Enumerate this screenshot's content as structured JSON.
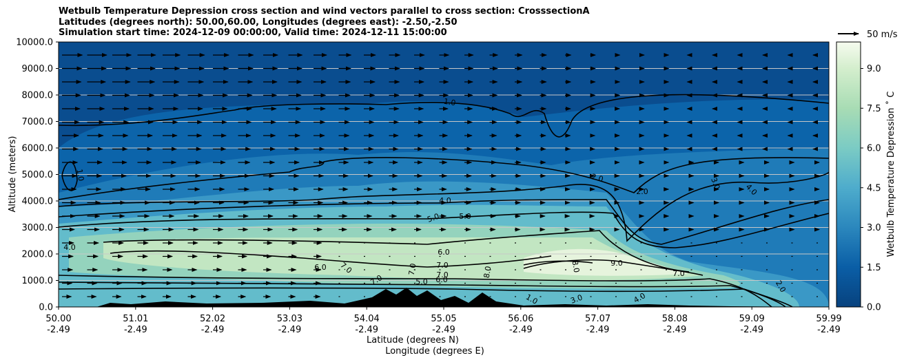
{
  "chart_data": {
    "type": "contour",
    "title": [
      "Wetbulb Temperature Depression cross section and wind vectors parallel to cross section: CrosssectionA",
      "Latitudes (degrees north): 50.00,60.00, Longitudes (degrees east): -2.50,-2.50",
      "Simulation start time: 2024-12-09 00:00:00, Valid time: 2024-12-11 15:00:00"
    ],
    "ylabel": "Altitude (meters)",
    "xlabel_lat": "Latitude (degrees N)",
    "xlabel_lon": "Longitude (degrees E)",
    "ylim": [
      0,
      10000
    ],
    "yticks": [
      "0.0",
      "1000.0",
      "2000.0",
      "3000.0",
      "4000.0",
      "5000.0",
      "6000.0",
      "7000.0",
      "8000.0",
      "9000.0",
      "10000.0"
    ],
    "xticks_lat": [
      "50.00",
      "51.01",
      "52.02",
      "53.03",
      "54.04",
      "55.05",
      "56.06",
      "57.07",
      "58.08",
      "59.09",
      "59.99"
    ],
    "xticks_lon": [
      "-2.49",
      "-2.49",
      "-2.49",
      "-2.49",
      "-2.49",
      "-2.49",
      "-2.49",
      "-2.49",
      "-2.49",
      "-2.49",
      "-2.49"
    ],
    "colorbar": {
      "label": "Wetbulb Temperature Depression $^\\circ$C",
      "label_text": "Wetbulb Temperature Depression ˚ C",
      "ticks": [
        "0.0",
        "1.5",
        "3.0",
        "4.5",
        "6.0",
        "7.5",
        "9.0"
      ],
      "range": [
        0,
        10
      ]
    },
    "wind_key": "50 m/s",
    "contour_labels": [
      "1.0",
      "1.0",
      "2.0",
      "2.0",
      "3.0",
      "4.0",
      "4.0",
      "4.0",
      "5.0",
      "5.0",
      "6.0",
      "6.0",
      "7.0",
      "7.0",
      "7.0",
      "7.0",
      "8.0",
      "8.0",
      "9.0",
      "7.0",
      "1.0",
      "2.0",
      "3.0",
      "4.0",
      "5.0",
      "6.0",
      "7.0"
    ],
    "field_peak": {
      "value": 9.0,
      "lat": 57.5,
      "alt": 1700
    }
  }
}
